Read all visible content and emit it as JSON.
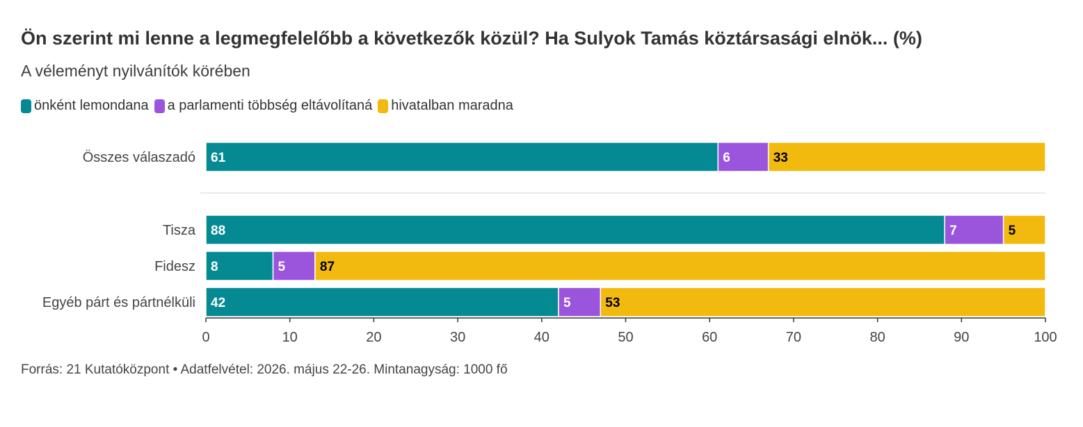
{
  "title": "Ön szerint mi lenne a legmegfelelőbb a következők közül? Ha Sulyok Tamás köztársasági elnök... (%)",
  "subtitle": "A véleményt nyilvánítók körében",
  "source": "Forrás: 21 Kutatóközpont • Adatfelvétel: 2026. május 22-26. Mintanagyság: 1000 fő",
  "chart_data": {
    "type": "bar",
    "orientation": "horizontal",
    "stacked": true,
    "categories": [
      "Összes válaszadó",
      "Tisza",
      "Fidesz",
      "Egyéb párt és pártnélküli"
    ],
    "series": [
      {
        "name": "önként lemondana",
        "color": "#058a94",
        "label_color": "#ffffff",
        "values": [
          61,
          88,
          8,
          42
        ]
      },
      {
        "name": "a parlamenti többség eltávolítaná",
        "color": "#9b55dc",
        "label_color": "#ffffff",
        "values": [
          6,
          7,
          5,
          5
        ]
      },
      {
        "name": "hivatalban maradna",
        "color": "#f2b90f",
        "label_color": "#000000",
        "values": [
          33,
          5,
          87,
          53
        ]
      }
    ],
    "xlim": [
      0,
      100
    ],
    "xticks": [
      0,
      10,
      20,
      30,
      40,
      50,
      60,
      70,
      80,
      90,
      100
    ],
    "legend_position": "top-left",
    "grid": false
  }
}
